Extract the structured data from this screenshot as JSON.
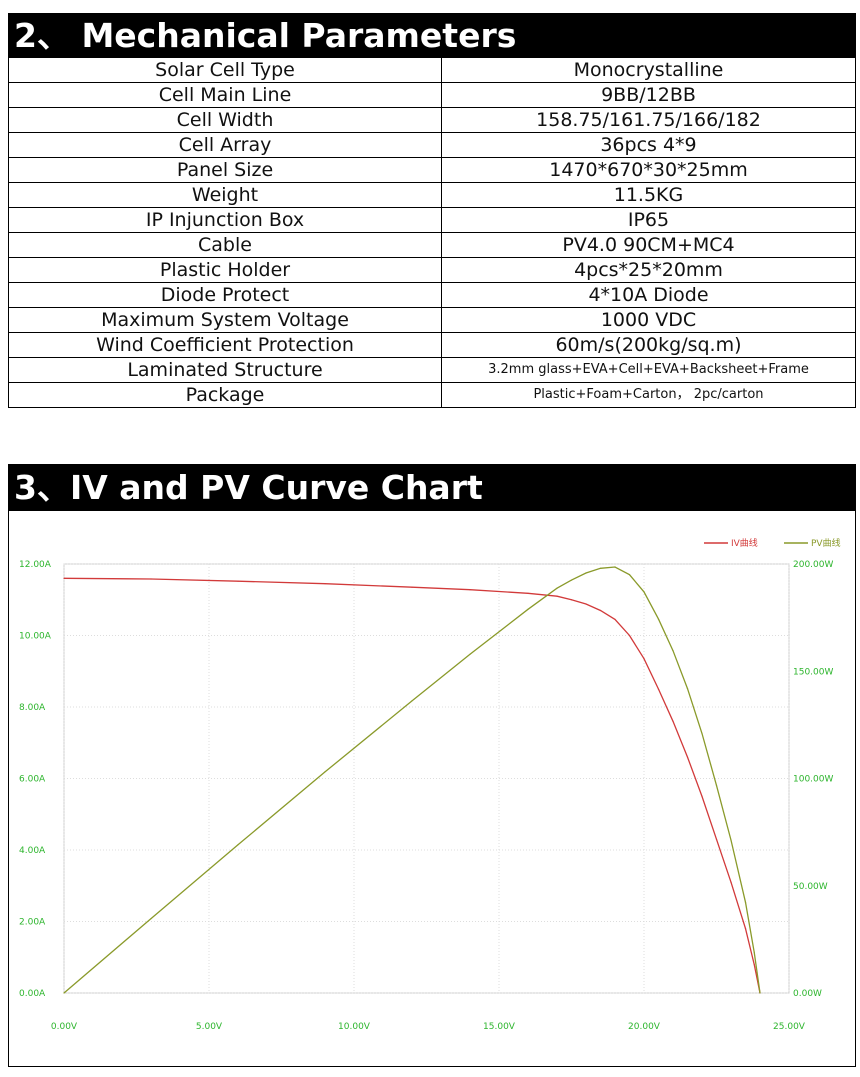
{
  "mechanical": {
    "title": "2、 Mechanical Parameters",
    "rows": [
      {
        "label": "Solar Cell Type",
        "value": "Monocrystalline"
      },
      {
        "label": "Cell Main Line",
        "value": "9BB/12BB"
      },
      {
        "label": "Cell Width",
        "value": "158.75/161.75/166/182"
      },
      {
        "label": "Cell Array",
        "value": "36pcs 4*9"
      },
      {
        "label": "Panel Size",
        "value": "1470*670*30*25mm"
      },
      {
        "label": "Weight",
        "value": "11.5KG"
      },
      {
        "label": "IP Injunction Box",
        "value": "IP65"
      },
      {
        "label": "Cable",
        "value": "PV4.0 90CM+MC4"
      },
      {
        "label": "Plastic Holder",
        "value": "4pcs*25*20mm"
      },
      {
        "label": "Diode Protect",
        "value": "4*10A Diode"
      },
      {
        "label": "Maximum System Voltage",
        "value": "1000 VDC"
      },
      {
        "label": "Wind Coefficient Protection",
        "value": "60m/s(200kg/sq.m)"
      },
      {
        "label": "Laminated Structure",
        "value": "3.2mm glass+EVA+Cell+EVA+Backsheet+Frame"
      },
      {
        "label": "Package",
        "value": "Plastic+Foam+Carton，  2pc/carton"
      }
    ]
  },
  "curve_section": {
    "title": "3、IV and PV Curve Chart"
  },
  "chart_data": {
    "type": "line",
    "title": "",
    "xlabel": "",
    "ylabel": "",
    "x_ticks": [
      "0.00V",
      "5.00V",
      "10.00V",
      "15.00V",
      "20.00V",
      "25.00V"
    ],
    "y_left_ticks": [
      "0.00A",
      "2.00A",
      "4.00A",
      "6.00A",
      "8.00A",
      "10.00A",
      "12.00A"
    ],
    "y_right_ticks": [
      "0.00W",
      "50.00W",
      "100.00W",
      "150.00W",
      "200.00W"
    ],
    "xlim": [
      0,
      25
    ],
    "ylim_left": [
      0,
      12
    ],
    "ylim_right": [
      0,
      200
    ],
    "grid": true,
    "legend_position": "top-right",
    "colors": {
      "iv": "#d23a3a",
      "pv": "#8a9a2a",
      "tick": "#2db52d",
      "grid": "#dddddd"
    },
    "series": [
      {
        "name": "IV曲线",
        "axis": "left",
        "x": [
          0,
          3,
          6,
          9,
          12,
          14,
          16,
          17,
          17.5,
          18,
          18.5,
          19,
          19.5,
          20,
          20.5,
          21,
          21.5,
          22,
          22.5,
          23,
          23.5,
          23.8,
          24
        ],
        "y": [
          11.6,
          11.58,
          11.52,
          11.45,
          11.35,
          11.28,
          11.18,
          11.1,
          11.0,
          10.88,
          10.7,
          10.45,
          10.0,
          9.35,
          8.5,
          7.6,
          6.6,
          5.5,
          4.3,
          3.1,
          1.8,
          0.8,
          0.0
        ]
      },
      {
        "name": "PV曲线",
        "axis": "right",
        "x": [
          0,
          3,
          6,
          9,
          12,
          14,
          16,
          17,
          17.5,
          18,
          18.5,
          19,
          19.5,
          20,
          20.5,
          21,
          21.5,
          22,
          22.5,
          23,
          23.5,
          23.8,
          24
        ],
        "y": [
          0,
          34.7,
          69.1,
          103.1,
          136.2,
          157.9,
          178.9,
          188.7,
          192.5,
          195.8,
          198.0,
          198.6,
          195.0,
          187.0,
          174.3,
          159.6,
          141.9,
          121.0,
          96.8,
          71.3,
          42.3,
          19.0,
          0.0
        ]
      }
    ]
  }
}
